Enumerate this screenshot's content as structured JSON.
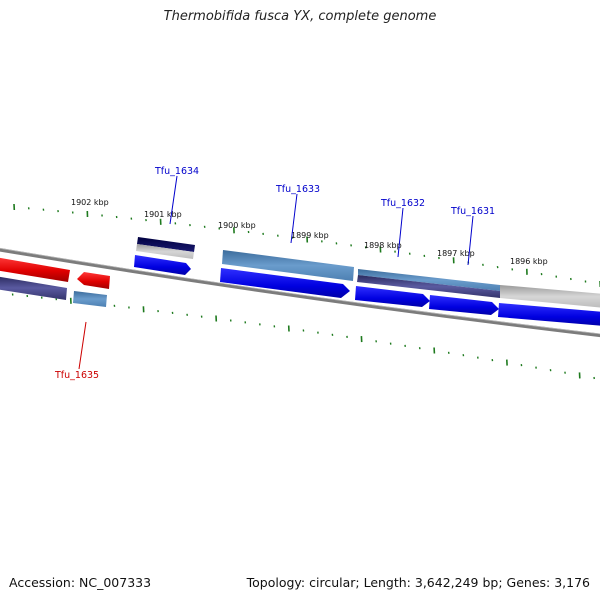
{
  "title": "Thermobifida fusca YX, complete genome",
  "footer": {
    "accession": "Accession: NC_007333",
    "topology": "Topology: circular; Length: 3,642,249 bp; Genes: 3,176"
  },
  "colors": {
    "backbone": "#808080",
    "ticks": "#1e7a1e",
    "gene_forward": "#1515f0",
    "gene_reverse": "#ee1111",
    "label_blue": "#0000cc",
    "label_red": "#cc0000"
  },
  "kbp_labels": [
    {
      "text": "1902 kbp"
    },
    {
      "text": "1901 kbp"
    },
    {
      "text": "1900 kbp"
    },
    {
      "text": "1899 kbp"
    },
    {
      "text": "1898 kbp"
    },
    {
      "text": "1897 kbp"
    },
    {
      "text": "1896 kbp"
    }
  ],
  "gene_labels": [
    {
      "text": "Tfu_1634"
    },
    {
      "text": "Tfu_1633"
    },
    {
      "text": "Tfu_1632"
    },
    {
      "text": "Tfu_1631"
    },
    {
      "text": "Tfu_1635"
    }
  ]
}
